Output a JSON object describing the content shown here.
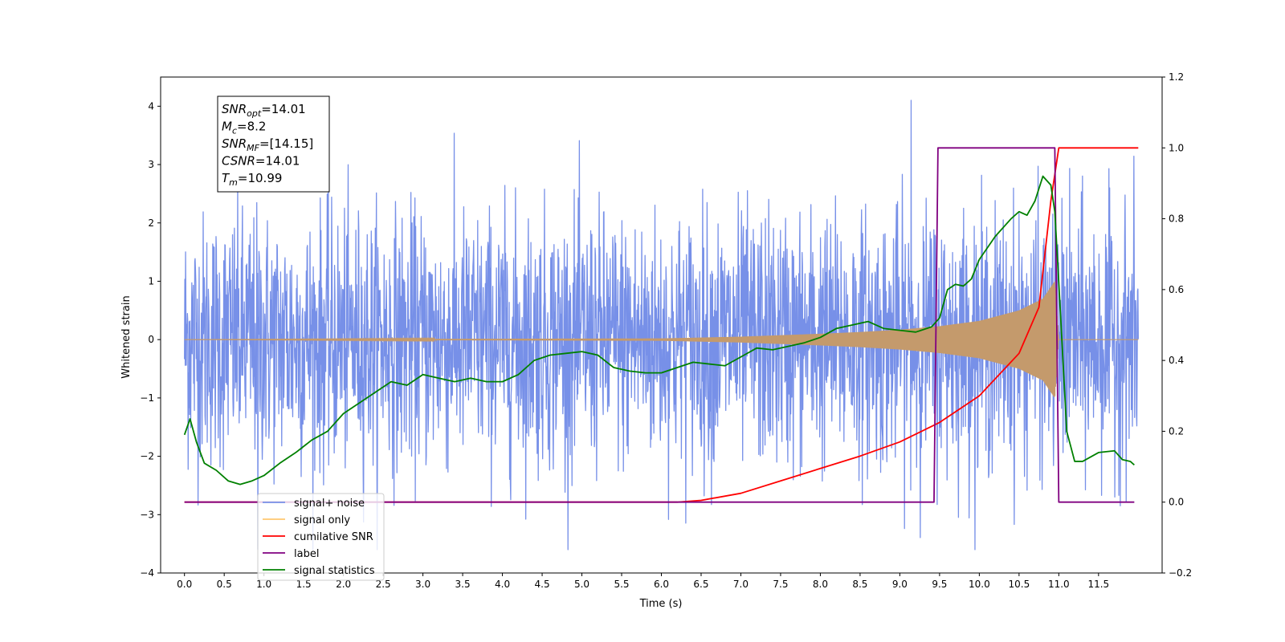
{
  "chart_data": {
    "type": "line",
    "title": "",
    "xlabel": "Time (s)",
    "ylabel": "Whitened strain",
    "ylabel_right": "",
    "xlim": [
      -0.3,
      12.3
    ],
    "ylim": [
      -4,
      4.5
    ],
    "ylim_right": [
      -0.2,
      1.2
    ],
    "x_ticks": [
      0.0,
      0.5,
      1.0,
      1.5,
      2.0,
      2.5,
      3.0,
      3.5,
      4.0,
      4.5,
      5.0,
      5.5,
      6.0,
      6.5,
      7.0,
      7.5,
      8.0,
      8.5,
      9.0,
      9.5,
      10.0,
      10.5,
      11.0,
      11.5
    ],
    "x_tick_labels": [
      "0.0",
      "0.5",
      "1.0",
      "1.5",
      "2.0",
      "2.5",
      "3.0",
      "3.5",
      "4.0",
      "4.5",
      "5.0",
      "5.5",
      "6.0",
      "6.5",
      "7.0",
      "7.5",
      "8.0",
      "8.5",
      "9.0",
      "9.5",
      "10.0",
      "10.5",
      "11.0",
      "11.5"
    ],
    "y_ticks": [
      -4,
      -3,
      -2,
      -1,
      0,
      1,
      2,
      3,
      4
    ],
    "y_tick_labels": [
      "−4",
      "−3",
      "−2",
      "−1",
      "0",
      "1",
      "2",
      "3",
      "4"
    ],
    "y_right_ticks": [
      -0.2,
      0.0,
      0.2,
      0.4,
      0.6,
      0.8,
      1.0,
      1.2
    ],
    "y_right_tick_labels": [
      "−0.2",
      "0.0",
      "0.2",
      "0.4",
      "0.6",
      "0.8",
      "1.0",
      "1.2"
    ],
    "grid": false,
    "legend_position": "lower-left",
    "annotation": [
      {
        "main": "SNR",
        "sub": "opt",
        "rest": "=14.01"
      },
      {
        "main": "M",
        "sub": "c",
        "rest": "=8.2"
      },
      {
        "main": "SNR",
        "sub": "MF",
        "rest": "=[14.15]"
      },
      {
        "main": "CSNR",
        "sub": "",
        "rest": "=14.01"
      },
      {
        "main": "T",
        "sub": "m",
        "rest": "=10.99"
      }
    ],
    "series": [
      {
        "name": "signal+ noise",
        "color": "#7790e8",
        "axis": "left",
        "kind": "noise",
        "center": 0,
        "typical_amplitude": 1.2,
        "min": -3.6,
        "max": 4.1,
        "x_range": [
          0.0,
          12.0
        ]
      },
      {
        "name": "signal only",
        "color": "#c49a6c",
        "legend_color": "#ffc870",
        "axis": "left",
        "kind": "envelope",
        "x": [
          0.0,
          6.0,
          7.0,
          8.0,
          8.5,
          9.0,
          9.5,
          10.0,
          10.5,
          10.8,
          10.95,
          11.0,
          12.0
        ],
        "amplitude": [
          0.0,
          0.02,
          0.05,
          0.1,
          0.13,
          0.17,
          0.23,
          0.32,
          0.5,
          0.7,
          1.0,
          0.0,
          0.0
        ]
      },
      {
        "name": "cumilative SNR",
        "color": "#ff0000",
        "axis": "right",
        "x": [
          0.0,
          6.2,
          6.5,
          7.0,
          7.5,
          8.0,
          8.5,
          9.0,
          9.5,
          10.0,
          10.5,
          10.75,
          10.9,
          11.0,
          12.0
        ],
        "values": [
          0.0,
          0.0,
          0.005,
          0.025,
          0.06,
          0.095,
          0.13,
          0.17,
          0.225,
          0.3,
          0.42,
          0.55,
          0.85,
          1.0,
          1.0
        ]
      },
      {
        "name": "label",
        "color": "#800080",
        "axis": "right",
        "x": [
          0.0,
          9.43,
          9.48,
          10.95,
          11.0,
          11.95
        ],
        "values": [
          0.0,
          0.0,
          1.0,
          1.0,
          0.0,
          0.0
        ]
      },
      {
        "name": "signal statistics",
        "color": "#008000",
        "axis": "right",
        "x": [
          0.0,
          0.07,
          0.15,
          0.25,
          0.4,
          0.55,
          0.7,
          0.85,
          1.0,
          1.2,
          1.4,
          1.6,
          1.8,
          2.0,
          2.2,
          2.4,
          2.6,
          2.8,
          3.0,
          3.2,
          3.4,
          3.6,
          3.8,
          4.0,
          4.2,
          4.4,
          4.6,
          4.8,
          5.0,
          5.2,
          5.4,
          5.6,
          5.8,
          6.0,
          6.2,
          6.4,
          6.6,
          6.8,
          7.0,
          7.2,
          7.4,
          7.6,
          7.8,
          8.0,
          8.2,
          8.4,
          8.6,
          8.8,
          9.0,
          9.2,
          9.4,
          9.5,
          9.6,
          9.7,
          9.8,
          9.9,
          10.0,
          10.2,
          10.4,
          10.5,
          10.6,
          10.7,
          10.8,
          10.9,
          10.95,
          11.0,
          11.1,
          11.2,
          11.3,
          11.5,
          11.7,
          11.8,
          11.9,
          11.95
        ],
        "values": [
          0.19,
          0.235,
          0.17,
          0.11,
          0.09,
          0.06,
          0.05,
          0.06,
          0.075,
          0.11,
          0.14,
          0.175,
          0.2,
          0.25,
          0.28,
          0.31,
          0.34,
          0.33,
          0.36,
          0.35,
          0.34,
          0.35,
          0.34,
          0.34,
          0.36,
          0.4,
          0.415,
          0.42,
          0.425,
          0.415,
          0.38,
          0.37,
          0.365,
          0.365,
          0.38,
          0.395,
          0.39,
          0.385,
          0.41,
          0.435,
          0.43,
          0.44,
          0.45,
          0.465,
          0.49,
          0.5,
          0.51,
          0.49,
          0.485,
          0.48,
          0.495,
          0.52,
          0.6,
          0.615,
          0.61,
          0.63,
          0.685,
          0.75,
          0.8,
          0.82,
          0.81,
          0.85,
          0.92,
          0.895,
          0.82,
          0.62,
          0.2,
          0.115,
          0.115,
          0.14,
          0.145,
          0.12,
          0.115,
          0.105
        ]
      }
    ]
  }
}
